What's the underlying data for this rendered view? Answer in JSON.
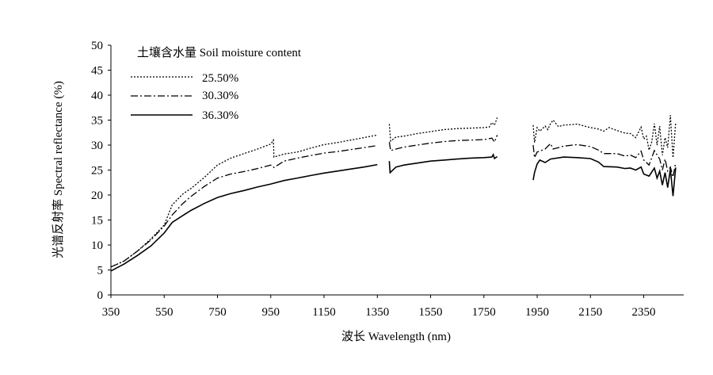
{
  "chart_data": {
    "type": "line",
    "title": "",
    "xlabel": "波长 Wavelength (nm)",
    "ylabel": "光谱反射率 Spectral reflectance (%)",
    "xlim": [
      350,
      2500
    ],
    "ylim": [
      0,
      50
    ],
    "grid": false,
    "x_ticks": [
      350,
      550,
      750,
      950,
      1150,
      1350,
      1550,
      1750,
      1950,
      2150,
      2350
    ],
    "y_ticks": [
      0,
      5,
      10,
      15,
      20,
      25,
      30,
      35,
      40,
      45,
      50
    ],
    "legend": {
      "title": "土壤含水量 Soil moisture content",
      "placement": "top-left"
    },
    "series": [
      {
        "name": "25.50%",
        "style": "dotted",
        "color": "#000000",
        "segments": [
          [
            [
              350,
              5.6
            ],
            [
              400,
              6.8
            ],
            [
              450,
              8.8
            ],
            [
              500,
              11.2
            ],
            [
              550,
              14.0
            ],
            [
              580,
              18.0
            ],
            [
              620,
              20.2
            ],
            [
              650,
              21.3
            ],
            [
              700,
              23.5
            ],
            [
              750,
              26.0
            ],
            [
              800,
              27.4
            ],
            [
              850,
              28.3
            ],
            [
              900,
              29.2
            ],
            [
              950,
              30.2
            ],
            [
              960,
              31.0
            ],
            [
              962,
              27.6
            ],
            [
              1000,
              28.2
            ],
            [
              1050,
              28.6
            ],
            [
              1100,
              29.4
            ],
            [
              1150,
              30.1
            ],
            [
              1200,
              30.5
            ],
            [
              1250,
              31.0
            ],
            [
              1300,
              31.5
            ],
            [
              1350,
              32.0
            ]
          ],
          [
            [
              1395,
              34.2
            ],
            [
              1400,
              30.8
            ],
            [
              1420,
              31.6
            ],
            [
              1450,
              31.8
            ],
            [
              1500,
              32.3
            ],
            [
              1550,
              32.7
            ],
            [
              1600,
              33.1
            ],
            [
              1650,
              33.3
            ],
            [
              1700,
              33.4
            ],
            [
              1750,
              33.5
            ],
            [
              1770,
              33.6
            ],
            [
              1780,
              34.5
            ],
            [
              1790,
              34.0
            ],
            [
              1800,
              35.5
            ]
          ],
          [
            [
              1935,
              34.0
            ],
            [
              1940,
              30.5
            ],
            [
              1950,
              33.5
            ],
            [
              1960,
              32.8
            ],
            [
              1980,
              33.8
            ],
            [
              1990,
              33.1
            ],
            [
              2000,
              34.3
            ],
            [
              2010,
              35.0
            ],
            [
              2030,
              33.7
            ],
            [
              2050,
              34.0
            ],
            [
              2080,
              34.1
            ],
            [
              2100,
              34.2
            ],
            [
              2120,
              33.9
            ],
            [
              2150,
              33.5
            ],
            [
              2180,
              33.2
            ],
            [
              2200,
              32.8
            ],
            [
              2220,
              33.5
            ],
            [
              2250,
              32.9
            ],
            [
              2280,
              32.4
            ],
            [
              2300,
              32.3
            ],
            [
              2320,
              31.5
            ],
            [
              2340,
              33.6
            ],
            [
              2350,
              31.2
            ],
            [
              2360,
              31.8
            ],
            [
              2370,
              29.0
            ],
            [
              2380,
              30.6
            ],
            [
              2390,
              34.3
            ],
            [
              2400,
              30.0
            ],
            [
              2410,
              33.8
            ],
            [
              2420,
              28.0
            ],
            [
              2430,
              31.5
            ],
            [
              2440,
              29.5
            ],
            [
              2450,
              36.0
            ],
            [
              2460,
              27.5
            ],
            [
              2470,
              34.5
            ]
          ]
        ]
      },
      {
        "name": "30.30%",
        "style": "dash-dot",
        "color": "#000000",
        "segments": [
          [
            [
              350,
              5.6
            ],
            [
              400,
              6.8
            ],
            [
              450,
              8.8
            ],
            [
              500,
              11.0
            ],
            [
              550,
              13.8
            ],
            [
              580,
              16.0
            ],
            [
              620,
              18.3
            ],
            [
              650,
              19.7
            ],
            [
              700,
              21.7
            ],
            [
              750,
              23.4
            ],
            [
              800,
              24.2
            ],
            [
              850,
              24.7
            ],
            [
              900,
              25.3
            ],
            [
              950,
              26.0
            ],
            [
              962,
              25.5
            ],
            [
              1000,
              26.8
            ],
            [
              1050,
              27.4
            ],
            [
              1100,
              27.9
            ],
            [
              1150,
              28.4
            ],
            [
              1200,
              28.7
            ],
            [
              1250,
              29.1
            ],
            [
              1300,
              29.5
            ],
            [
              1350,
              29.9
            ]
          ],
          [
            [
              1395,
              30.6
            ],
            [
              1400,
              28.9
            ],
            [
              1420,
              29.2
            ],
            [
              1450,
              29.6
            ],
            [
              1500,
              30.0
            ],
            [
              1550,
              30.4
            ],
            [
              1600,
              30.7
            ],
            [
              1650,
              30.9
            ],
            [
              1700,
              31.0
            ],
            [
              1750,
              31.1
            ],
            [
              1780,
              31.4
            ],
            [
              1790,
              30.6
            ],
            [
              1800,
              32.0
            ]
          ],
          [
            [
              1935,
              30.0
            ],
            [
              1940,
              27.5
            ],
            [
              1950,
              28.6
            ],
            [
              1980,
              29.2
            ],
            [
              2000,
              30.3
            ],
            [
              2010,
              29.2
            ],
            [
              2050,
              29.8
            ],
            [
              2100,
              30.1
            ],
            [
              2150,
              29.7
            ],
            [
              2180,
              29.0
            ],
            [
              2200,
              28.3
            ],
            [
              2250,
              28.3
            ],
            [
              2280,
              27.8
            ],
            [
              2300,
              28.0
            ],
            [
              2320,
              27.5
            ],
            [
              2340,
              28.8
            ],
            [
              2350,
              27.0
            ],
            [
              2370,
              26.0
            ],
            [
              2390,
              28.9
            ],
            [
              2410,
              27.2
            ],
            [
              2420,
              25.0
            ],
            [
              2430,
              27.2
            ],
            [
              2440,
              24.8
            ],
            [
              2450,
              25.6
            ],
            [
              2460,
              23.6
            ],
            [
              2470,
              26.5
            ]
          ]
        ]
      },
      {
        "name": "36.30%",
        "style": "solid",
        "color": "#000000",
        "segments": [
          [
            [
              350,
              4.8
            ],
            [
              400,
              6.2
            ],
            [
              450,
              7.9
            ],
            [
              500,
              9.8
            ],
            [
              550,
              12.4
            ],
            [
              580,
              14.5
            ],
            [
              620,
              15.9
            ],
            [
              650,
              16.9
            ],
            [
              700,
              18.3
            ],
            [
              750,
              19.5
            ],
            [
              800,
              20.3
            ],
            [
              850,
              20.9
            ],
            [
              900,
              21.6
            ],
            [
              950,
              22.2
            ],
            [
              1000,
              22.9
            ],
            [
              1050,
              23.4
            ],
            [
              1100,
              23.9
            ],
            [
              1150,
              24.4
            ],
            [
              1200,
              24.8
            ],
            [
              1250,
              25.2
            ],
            [
              1300,
              25.6
            ],
            [
              1350,
              26.1
            ]
          ],
          [
            [
              1395,
              26.8
            ],
            [
              1398,
              24.5
            ],
            [
              1420,
              25.6
            ],
            [
              1450,
              26.0
            ],
            [
              1500,
              26.4
            ],
            [
              1550,
              26.8
            ],
            [
              1600,
              27.0
            ],
            [
              1650,
              27.2
            ],
            [
              1700,
              27.4
            ],
            [
              1750,
              27.5
            ],
            [
              1780,
              27.6
            ],
            [
              1785,
              28.1
            ],
            [
              1790,
              27.3
            ],
            [
              1800,
              27.7
            ]
          ],
          [
            [
              1935,
              23.0
            ],
            [
              1940,
              24.5
            ],
            [
              1950,
              26.2
            ],
            [
              1960,
              27.0
            ],
            [
              1980,
              26.5
            ],
            [
              2000,
              27.2
            ],
            [
              2050,
              27.6
            ],
            [
              2100,
              27.5
            ],
            [
              2150,
              27.3
            ],
            [
              2180,
              26.6
            ],
            [
              2200,
              25.7
            ],
            [
              2250,
              25.6
            ],
            [
              2280,
              25.3
            ],
            [
              2300,
              25.4
            ],
            [
              2320,
              25.0
            ],
            [
              2340,
              25.6
            ],
            [
              2350,
              24.2
            ],
            [
              2370,
              23.8
            ],
            [
              2390,
              25.4
            ],
            [
              2400,
              23.4
            ],
            [
              2410,
              24.8
            ],
            [
              2420,
              22.0
            ],
            [
              2430,
              24.5
            ],
            [
              2440,
              21.5
            ],
            [
              2450,
              25.2
            ],
            [
              2460,
              19.8
            ],
            [
              2470,
              25.5
            ]
          ]
        ]
      }
    ]
  }
}
